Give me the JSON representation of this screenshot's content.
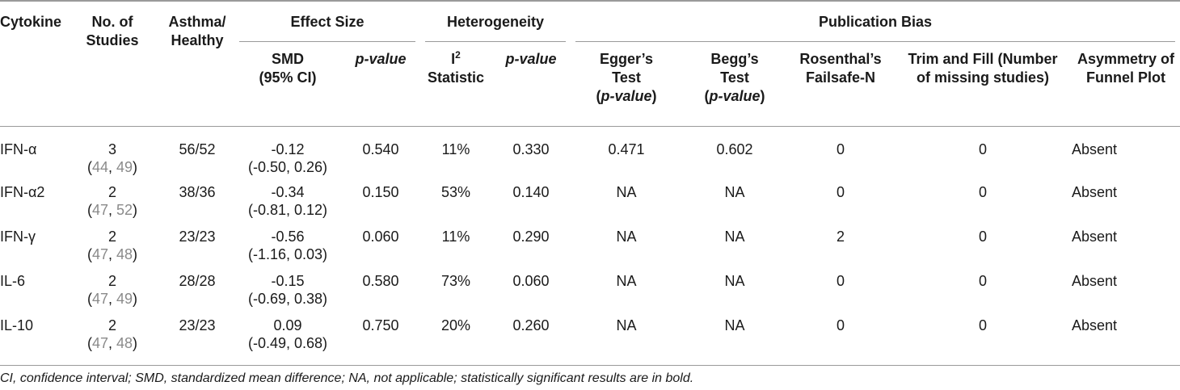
{
  "header": {
    "cytokine": "Cytokine",
    "no_of_studies_1": "No. of",
    "no_of_studies_2": "Studies",
    "asthma_healthy_1": "Asthma/",
    "asthma_healthy_2": "Healthy",
    "effect_size": "Effect Size",
    "heterogeneity": "Heterogeneity",
    "publication_bias": "Publication Bias",
    "smd_1": "SMD",
    "smd_2": "(95% CI)",
    "p_value": "p-value",
    "i2_base": "I",
    "i2_sup": "2",
    "i2_2": "Statistic",
    "eggers_1": "Egger’s",
    "eggers_2": "Test",
    "eggers_3": "p-value",
    "beggs_1": "Begg’s",
    "beggs_2": "Test",
    "beggs_3": "p-value",
    "rosenthal_1": "Rosenthal’s",
    "rosenthal_2": "Failsafe-N",
    "trim_1": "Trim and Fill (Number",
    "trim_2": "of missing studies)",
    "asym_1": "Asymmetry of",
    "asym_2": "Funnel Plot"
  },
  "rows": [
    {
      "cytokine": "IFN-α",
      "studies": "3",
      "refs": [
        "44",
        "49"
      ],
      "asthma_healthy": "56/52",
      "smd": "-0.12",
      "ci": "(-0.50, 0.26)",
      "smd_p": "0.540",
      "i2": "11%",
      "het_p": "0.330",
      "egger": "0.471",
      "begg": "0.602",
      "rosenthal": "0",
      "trim_fill": "0",
      "asymmetry": "Absent"
    },
    {
      "cytokine": "IFN-α2",
      "studies": "2",
      "refs": [
        "47",
        "52"
      ],
      "asthma_healthy": "38/36",
      "smd": "-0.34",
      "ci": "(-0.81, 0.12)",
      "smd_p": "0.150",
      "i2": "53%",
      "het_p": "0.140",
      "egger": "NA",
      "begg": "NA",
      "rosenthal": "0",
      "trim_fill": "0",
      "asymmetry": "Absent"
    },
    {
      "cytokine": "IFN-γ",
      "studies": "2",
      "refs": [
        "47",
        "48"
      ],
      "asthma_healthy": "23/23",
      "smd": "-0.56",
      "ci": "(-1.16, 0.03)",
      "smd_p": "0.060",
      "i2": "11%",
      "het_p": "0.290",
      "egger": "NA",
      "begg": "NA",
      "rosenthal": "2",
      "trim_fill": "0",
      "asymmetry": "Absent"
    },
    {
      "cytokine": "IL-6",
      "studies": "2",
      "refs": [
        "47",
        "49"
      ],
      "asthma_healthy": "28/28",
      "smd": "-0.15",
      "ci": "(-0.69, 0.38)",
      "smd_p": "0.580",
      "i2": "73%",
      "het_p": "0.060",
      "egger": "NA",
      "begg": "NA",
      "rosenthal": "0",
      "trim_fill": "0",
      "asymmetry": "Absent"
    },
    {
      "cytokine": "IL-10",
      "studies": "2",
      "refs": [
        "47",
        "48"
      ],
      "asthma_healthy": "23/23",
      "smd": "0.09",
      "ci": "(-0.49, 0.68)",
      "smd_p": "0.750",
      "i2": "20%",
      "het_p": "0.260",
      "egger": "NA",
      "begg": "NA",
      "rosenthal": "0",
      "trim_fill": "0",
      "asymmetry": "Absent"
    }
  ],
  "footnote": "CI, confidence interval; SMD, standardized mean difference; NA, not applicable; statistically significant results are in bold.",
  "colors": {
    "rule": "#9a9a9a",
    "ref_link": "#8a8a8a",
    "text": "#1a1a1a"
  }
}
